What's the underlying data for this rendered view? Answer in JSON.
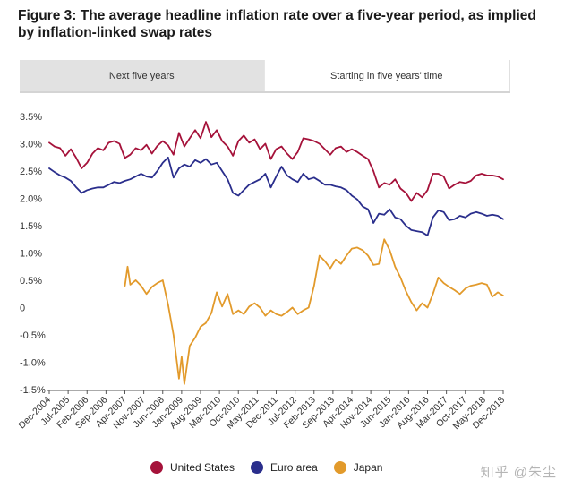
{
  "title": "Figure 3: The average headline inflation rate over a five-year period, as implied by inflation-linked swap rates",
  "tabs": [
    {
      "label": "Next five years",
      "active": false
    },
    {
      "label": "Starting in five years' time",
      "active": true
    }
  ],
  "watermark": "知乎 @朱尘",
  "chart_data": {
    "type": "line",
    "title": "",
    "xlabel": "",
    "ylabel": "",
    "ylim": [
      -1.5,
      3.5
    ],
    "grid": false,
    "legend_position": "bottom",
    "yticks": [
      {
        "value": 3.5,
        "label": "3.5%"
      },
      {
        "value": 3.0,
        "label": "3.0%"
      },
      {
        "value": 2.5,
        "label": "2.5%"
      },
      {
        "value": 2.0,
        "label": "2.0%"
      },
      {
        "value": 1.5,
        "label": "1.5%"
      },
      {
        "value": 1.0,
        "label": "1.0%"
      },
      {
        "value": 0.5,
        "label": "0.5%"
      },
      {
        "value": 0.0,
        "label": "0"
      },
      {
        "value": -0.5,
        "label": "-0.5%"
      },
      {
        "value": -1.0,
        "label": "-1.0%"
      },
      {
        "value": -1.5,
        "label": "-1.5%"
      }
    ],
    "xticks": [
      {
        "date": "2004-12",
        "label": "Dec-2004"
      },
      {
        "date": "2005-07",
        "label": "Jul-2005"
      },
      {
        "date": "2006-02",
        "label": "Feb-2006"
      },
      {
        "date": "2006-09",
        "label": "Sep-2006"
      },
      {
        "date": "2007-04",
        "label": "Apr-2007"
      },
      {
        "date": "2007-11",
        "label": "Nov-2007"
      },
      {
        "date": "2008-06",
        "label": "Jun-2008"
      },
      {
        "date": "2009-01",
        "label": "Jan-2009"
      },
      {
        "date": "2009-08",
        "label": "Aug-2009"
      },
      {
        "date": "2010-03",
        "label": "Mar-2010"
      },
      {
        "date": "2010-10",
        "label": "Oct-2010"
      },
      {
        "date": "2011-05",
        "label": "May-2011"
      },
      {
        "date": "2011-12",
        "label": "Dec-2011"
      },
      {
        "date": "2012-07",
        "label": "Jul-2012"
      },
      {
        "date": "2013-02",
        "label": "Feb-2013"
      },
      {
        "date": "2013-09",
        "label": "Sep-2013"
      },
      {
        "date": "2014-04",
        "label": "Apr-2014"
      },
      {
        "date": "2014-11",
        "label": "Nov-2014"
      },
      {
        "date": "2015-06",
        "label": "Jun-2015"
      },
      {
        "date": "2016-01",
        "label": "Jan-2016"
      },
      {
        "date": "2016-08",
        "label": "Aug-2016"
      },
      {
        "date": "2017-03",
        "label": "Mar-2017"
      },
      {
        "date": "2017-10",
        "label": "Oct-2017"
      },
      {
        "date": "2018-05",
        "label": "May-2018"
      },
      {
        "date": "2018-12",
        "label": "Dec-2018"
      }
    ],
    "series": [
      {
        "name": "United States",
        "color": "#a5123a",
        "points": [
          [
            "2004-12",
            3.02
          ],
          [
            "2005-02",
            2.95
          ],
          [
            "2005-04",
            2.92
          ],
          [
            "2005-06",
            2.78
          ],
          [
            "2005-08",
            2.9
          ],
          [
            "2005-10",
            2.74
          ],
          [
            "2005-12",
            2.55
          ],
          [
            "2006-02",
            2.65
          ],
          [
            "2006-04",
            2.82
          ],
          [
            "2006-06",
            2.92
          ],
          [
            "2006-08",
            2.88
          ],
          [
            "2006-10",
            3.02
          ],
          [
            "2006-12",
            3.05
          ],
          [
            "2007-02",
            3.0
          ],
          [
            "2007-04",
            2.74
          ],
          [
            "2007-06",
            2.8
          ],
          [
            "2007-08",
            2.92
          ],
          [
            "2007-10",
            2.88
          ],
          [
            "2007-12",
            2.98
          ],
          [
            "2008-02",
            2.82
          ],
          [
            "2008-04",
            2.96
          ],
          [
            "2008-06",
            3.05
          ],
          [
            "2008-08",
            2.97
          ],
          [
            "2008-10",
            2.8
          ],
          [
            "2008-12",
            3.2
          ],
          [
            "2009-02",
            2.95
          ],
          [
            "2009-04",
            3.1
          ],
          [
            "2009-06",
            3.25
          ],
          [
            "2009-08",
            3.1
          ],
          [
            "2009-10",
            3.4
          ],
          [
            "2009-12",
            3.12
          ],
          [
            "2010-02",
            3.25
          ],
          [
            "2010-04",
            3.05
          ],
          [
            "2010-06",
            2.95
          ],
          [
            "2010-08",
            2.78
          ],
          [
            "2010-10",
            3.05
          ],
          [
            "2010-12",
            3.15
          ],
          [
            "2011-02",
            3.02
          ],
          [
            "2011-04",
            3.08
          ],
          [
            "2011-06",
            2.9
          ],
          [
            "2011-08",
            3.0
          ],
          [
            "2011-10",
            2.72
          ],
          [
            "2011-12",
            2.9
          ],
          [
            "2012-02",
            2.95
          ],
          [
            "2012-04",
            2.82
          ],
          [
            "2012-06",
            2.72
          ],
          [
            "2012-08",
            2.85
          ],
          [
            "2012-10",
            3.1
          ],
          [
            "2012-12",
            3.08
          ],
          [
            "2013-02",
            3.05
          ],
          [
            "2013-04",
            3.0
          ],
          [
            "2013-06",
            2.9
          ],
          [
            "2013-08",
            2.8
          ],
          [
            "2013-10",
            2.92
          ],
          [
            "2013-12",
            2.95
          ],
          [
            "2014-02",
            2.85
          ],
          [
            "2014-04",
            2.9
          ],
          [
            "2014-06",
            2.85
          ],
          [
            "2014-08",
            2.78
          ],
          [
            "2014-10",
            2.72
          ],
          [
            "2014-12",
            2.5
          ],
          [
            "2015-02",
            2.2
          ],
          [
            "2015-04",
            2.28
          ],
          [
            "2015-06",
            2.25
          ],
          [
            "2015-08",
            2.35
          ],
          [
            "2015-10",
            2.18
          ],
          [
            "2015-12",
            2.1
          ],
          [
            "2016-02",
            1.95
          ],
          [
            "2016-04",
            2.1
          ],
          [
            "2016-06",
            2.02
          ],
          [
            "2016-08",
            2.15
          ],
          [
            "2016-10",
            2.45
          ],
          [
            "2016-12",
            2.45
          ],
          [
            "2017-02",
            2.4
          ],
          [
            "2017-04",
            2.18
          ],
          [
            "2017-06",
            2.25
          ],
          [
            "2017-08",
            2.3
          ],
          [
            "2017-10",
            2.28
          ],
          [
            "2017-12",
            2.32
          ],
          [
            "2018-02",
            2.42
          ],
          [
            "2018-04",
            2.45
          ],
          [
            "2018-06",
            2.42
          ],
          [
            "2018-08",
            2.42
          ],
          [
            "2018-10",
            2.4
          ],
          [
            "2018-12",
            2.35
          ]
        ]
      },
      {
        "name": "Euro area",
        "color": "#2a2e8c",
        "points": [
          [
            "2004-12",
            2.55
          ],
          [
            "2005-02",
            2.48
          ],
          [
            "2005-04",
            2.42
          ],
          [
            "2005-06",
            2.38
          ],
          [
            "2005-08",
            2.32
          ],
          [
            "2005-10",
            2.2
          ],
          [
            "2005-12",
            2.1
          ],
          [
            "2006-02",
            2.15
          ],
          [
            "2006-04",
            2.18
          ],
          [
            "2006-06",
            2.2
          ],
          [
            "2006-08",
            2.2
          ],
          [
            "2006-10",
            2.25
          ],
          [
            "2006-12",
            2.3
          ],
          [
            "2007-02",
            2.28
          ],
          [
            "2007-04",
            2.32
          ],
          [
            "2007-06",
            2.35
          ],
          [
            "2007-08",
            2.4
          ],
          [
            "2007-10",
            2.45
          ],
          [
            "2007-12",
            2.4
          ],
          [
            "2008-02",
            2.38
          ],
          [
            "2008-04",
            2.5
          ],
          [
            "2008-06",
            2.65
          ],
          [
            "2008-08",
            2.75
          ],
          [
            "2008-10",
            2.38
          ],
          [
            "2008-12",
            2.55
          ],
          [
            "2009-02",
            2.62
          ],
          [
            "2009-04",
            2.58
          ],
          [
            "2009-06",
            2.7
          ],
          [
            "2009-08",
            2.65
          ],
          [
            "2009-10",
            2.72
          ],
          [
            "2009-12",
            2.62
          ],
          [
            "2010-02",
            2.65
          ],
          [
            "2010-04",
            2.5
          ],
          [
            "2010-06",
            2.35
          ],
          [
            "2010-08",
            2.1
          ],
          [
            "2010-10",
            2.05
          ],
          [
            "2010-12",
            2.15
          ],
          [
            "2011-02",
            2.25
          ],
          [
            "2011-04",
            2.3
          ],
          [
            "2011-06",
            2.35
          ],
          [
            "2011-08",
            2.45
          ],
          [
            "2011-10",
            2.2
          ],
          [
            "2011-12",
            2.4
          ],
          [
            "2012-02",
            2.58
          ],
          [
            "2012-04",
            2.42
          ],
          [
            "2012-06",
            2.35
          ],
          [
            "2012-08",
            2.3
          ],
          [
            "2012-10",
            2.45
          ],
          [
            "2012-12",
            2.35
          ],
          [
            "2013-02",
            2.38
          ],
          [
            "2013-04",
            2.32
          ],
          [
            "2013-06",
            2.25
          ],
          [
            "2013-08",
            2.25
          ],
          [
            "2013-10",
            2.22
          ],
          [
            "2013-12",
            2.2
          ],
          [
            "2014-02",
            2.15
          ],
          [
            "2014-04",
            2.05
          ],
          [
            "2014-06",
            1.98
          ],
          [
            "2014-08",
            1.85
          ],
          [
            "2014-10",
            1.8
          ],
          [
            "2014-12",
            1.55
          ],
          [
            "2015-02",
            1.72
          ],
          [
            "2015-04",
            1.7
          ],
          [
            "2015-06",
            1.8
          ],
          [
            "2015-08",
            1.65
          ],
          [
            "2015-10",
            1.62
          ],
          [
            "2015-12",
            1.5
          ],
          [
            "2016-02",
            1.42
          ],
          [
            "2016-04",
            1.4
          ],
          [
            "2016-06",
            1.38
          ],
          [
            "2016-08",
            1.32
          ],
          [
            "2016-10",
            1.65
          ],
          [
            "2016-12",
            1.78
          ],
          [
            "2017-02",
            1.75
          ],
          [
            "2017-04",
            1.6
          ],
          [
            "2017-06",
            1.62
          ],
          [
            "2017-08",
            1.68
          ],
          [
            "2017-10",
            1.65
          ],
          [
            "2017-12",
            1.72
          ],
          [
            "2018-02",
            1.75
          ],
          [
            "2018-04",
            1.72
          ],
          [
            "2018-06",
            1.68
          ],
          [
            "2018-08",
            1.7
          ],
          [
            "2018-10",
            1.68
          ],
          [
            "2018-12",
            1.62
          ]
        ]
      },
      {
        "name": "Japan",
        "color": "#e29a2b",
        "points": [
          [
            "2007-04",
            0.4
          ],
          [
            "2007-05",
            0.75
          ],
          [
            "2007-06",
            0.42
          ],
          [
            "2007-08",
            0.5
          ],
          [
            "2007-10",
            0.4
          ],
          [
            "2007-12",
            0.25
          ],
          [
            "2008-02",
            0.38
          ],
          [
            "2008-04",
            0.45
          ],
          [
            "2008-06",
            0.5
          ],
          [
            "2008-08",
            0.05
          ],
          [
            "2008-10",
            -0.5
          ],
          [
            "2008-12",
            -1.3
          ],
          [
            "2009-01",
            -0.9
          ],
          [
            "2009-02",
            -1.4
          ],
          [
            "2009-04",
            -0.7
          ],
          [
            "2009-06",
            -0.55
          ],
          [
            "2009-08",
            -0.35
          ],
          [
            "2009-10",
            -0.28
          ],
          [
            "2009-12",
            -0.1
          ],
          [
            "2010-02",
            0.28
          ],
          [
            "2010-04",
            0.02
          ],
          [
            "2010-06",
            0.25
          ],
          [
            "2010-08",
            -0.12
          ],
          [
            "2010-10",
            -0.05
          ],
          [
            "2010-12",
            -0.12
          ],
          [
            "2011-02",
            0.02
          ],
          [
            "2011-04",
            0.08
          ],
          [
            "2011-06",
            0.0
          ],
          [
            "2011-08",
            -0.15
          ],
          [
            "2011-10",
            -0.05
          ],
          [
            "2011-12",
            -0.12
          ],
          [
            "2012-02",
            -0.15
          ],
          [
            "2012-04",
            -0.08
          ],
          [
            "2012-06",
            0.0
          ],
          [
            "2012-08",
            -0.12
          ],
          [
            "2012-10",
            -0.05
          ],
          [
            "2012-12",
            0.0
          ],
          [
            "2013-02",
            0.4
          ],
          [
            "2013-04",
            0.95
          ],
          [
            "2013-06",
            0.85
          ],
          [
            "2013-08",
            0.72
          ],
          [
            "2013-10",
            0.88
          ],
          [
            "2013-12",
            0.8
          ],
          [
            "2014-02",
            0.95
          ],
          [
            "2014-04",
            1.08
          ],
          [
            "2014-06",
            1.1
          ],
          [
            "2014-08",
            1.05
          ],
          [
            "2014-10",
            0.95
          ],
          [
            "2014-12",
            0.78
          ],
          [
            "2015-02",
            0.8
          ],
          [
            "2015-04",
            1.25
          ],
          [
            "2015-06",
            1.05
          ],
          [
            "2015-08",
            0.75
          ],
          [
            "2015-10",
            0.55
          ],
          [
            "2015-12",
            0.3
          ],
          [
            "2016-02",
            0.1
          ],
          [
            "2016-04",
            -0.05
          ],
          [
            "2016-06",
            0.08
          ],
          [
            "2016-08",
            0.0
          ],
          [
            "2016-10",
            0.25
          ],
          [
            "2016-12",
            0.55
          ],
          [
            "2017-02",
            0.45
          ],
          [
            "2017-04",
            0.38
          ],
          [
            "2017-06",
            0.32
          ],
          [
            "2017-08",
            0.25
          ],
          [
            "2017-10",
            0.35
          ],
          [
            "2017-12",
            0.4
          ],
          [
            "2018-02",
            0.42
          ],
          [
            "2018-04",
            0.45
          ],
          [
            "2018-06",
            0.42
          ],
          [
            "2018-08",
            0.2
          ],
          [
            "2018-10",
            0.28
          ],
          [
            "2018-12",
            0.22
          ]
        ]
      }
    ]
  }
}
